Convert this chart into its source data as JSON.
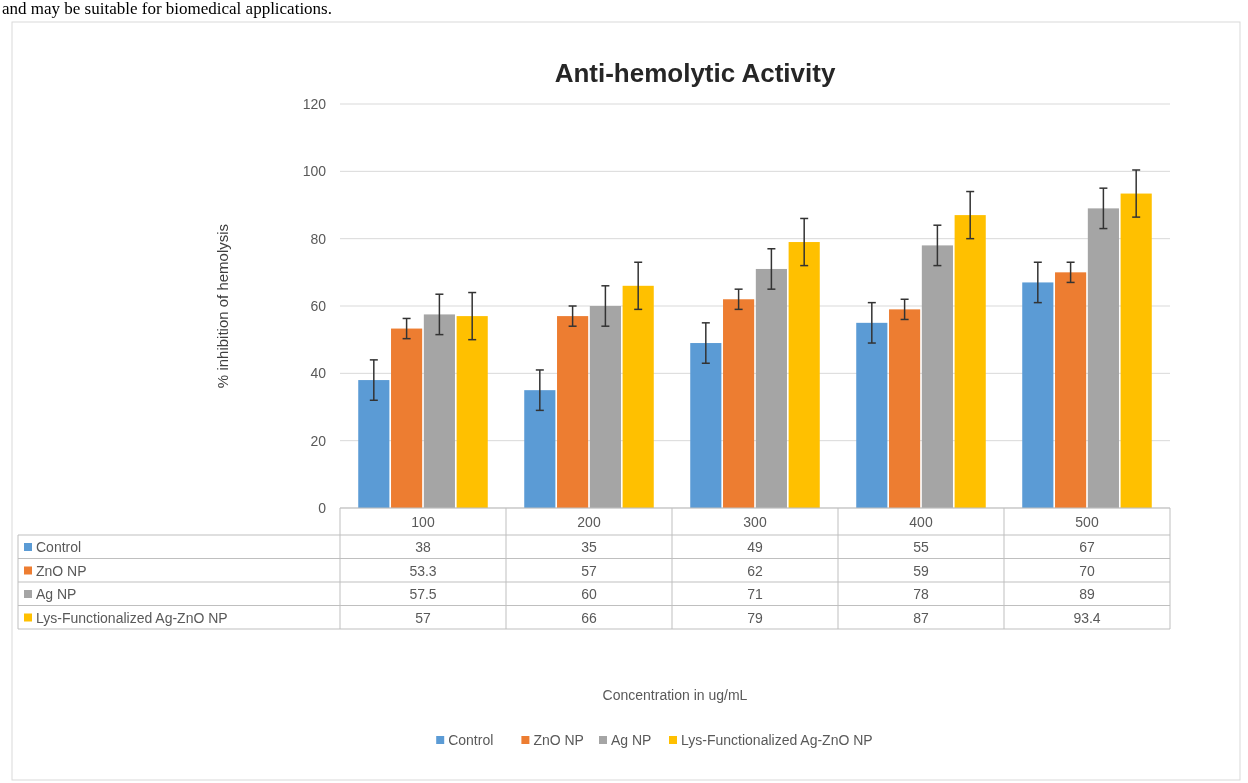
{
  "chart_data": {
    "type": "bar",
    "title": "Anti-hemolytic Activity",
    "ylabel": "% inhibition of hemolysis",
    "annotations": [
      "and may be suitable for biomedical applications.",
      "Concentration in ug/mL"
    ],
    "categories": [
      "100",
      "200",
      "300",
      "400",
      "500"
    ],
    "series": [
      {
        "name": "Control",
        "color": "#5b9bd5",
        "values": [
          38,
          35,
          49,
          55,
          67
        ],
        "errors": [
          6,
          6,
          6,
          6,
          6
        ]
      },
      {
        "name": "ZnO NP",
        "color": "#ed7d31",
        "values": [
          53.3,
          57,
          62,
          59,
          70
        ],
        "errors": [
          3,
          3,
          3,
          3,
          3
        ]
      },
      {
        "name": "Ag NP",
        "color": "#a5a5a5",
        "values": [
          57.5,
          60,
          71,
          78,
          89
        ],
        "errors": [
          6,
          6,
          6,
          6,
          6
        ]
      },
      {
        "name": "Lys-Functionalized Ag-ZnO NP",
        "color": "#ffc000",
        "values": [
          57,
          66,
          79,
          87,
          93.4
        ],
        "errors": [
          7,
          7,
          7,
          7,
          7
        ]
      }
    ],
    "ylim": [
      0,
      120
    ],
    "yticks": [
      0,
      20,
      40,
      60,
      80,
      100,
      120
    ],
    "grid": "y",
    "legend": "bottom",
    "data_labels": true
  }
}
